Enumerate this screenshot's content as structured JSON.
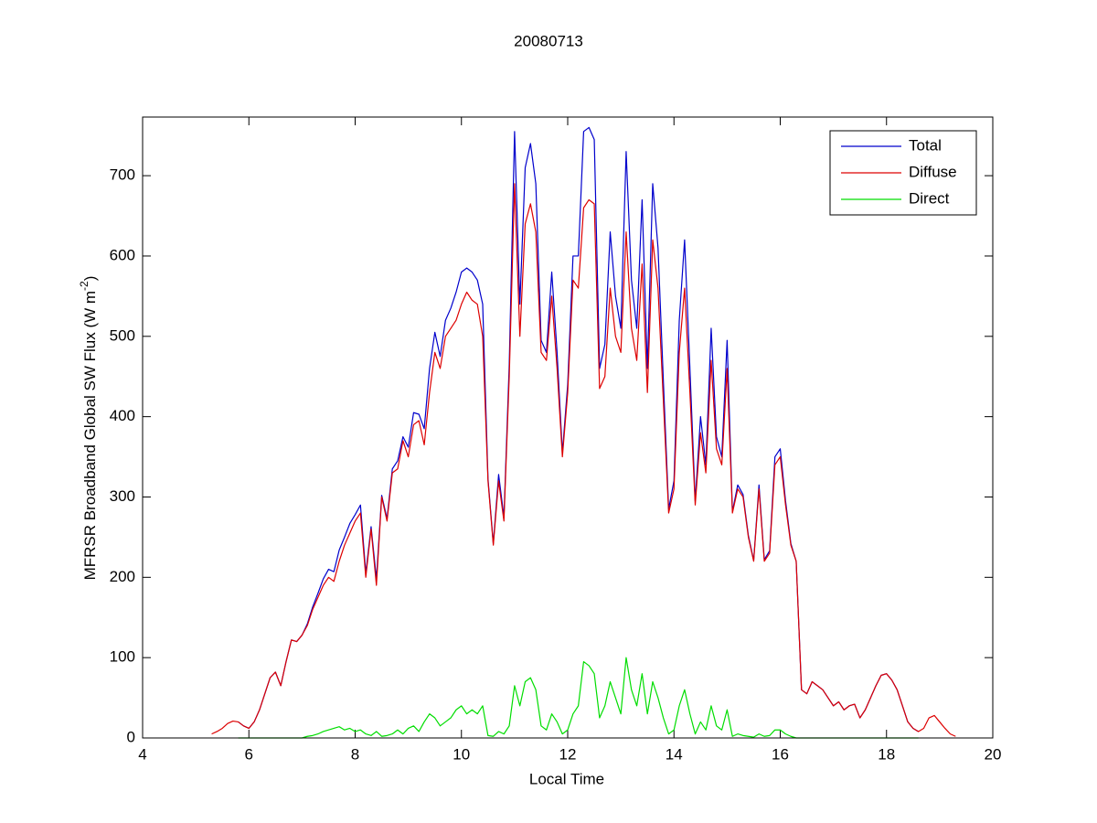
{
  "chart_data": {
    "type": "line",
    "title": "20080713",
    "xlabel": "Local Time",
    "ylabel": {
      "text": "MFRSR Broadband Global SW Flux (W m",
      "superscript": "-2",
      "close": ")"
    },
    "xlim": [
      4,
      20
    ],
    "xticks": [
      4,
      6,
      8,
      10,
      12,
      14,
      16,
      18,
      20
    ],
    "ylim": [
      0,
      773
    ],
    "yticks": [
      0,
      100,
      200,
      300,
      400,
      500,
      600,
      700
    ],
    "grid": false,
    "legend": "upper right",
    "x": [
      5.3,
      5.4,
      5.5,
      5.6,
      5.7,
      5.8,
      5.9,
      6.0,
      6.1,
      6.2,
      6.3,
      6.4,
      6.5,
      6.6,
      6.7,
      6.8,
      6.9,
      7.0,
      7.1,
      7.2,
      7.3,
      7.4,
      7.5,
      7.6,
      7.7,
      7.8,
      7.9,
      8.0,
      8.1,
      8.2,
      8.3,
      8.4,
      8.5,
      8.6,
      8.7,
      8.8,
      8.9,
      9.0,
      9.1,
      9.2,
      9.3,
      9.4,
      9.5,
      9.6,
      9.7,
      9.8,
      9.9,
      10.0,
      10.1,
      10.2,
      10.3,
      10.4,
      10.5,
      10.6,
      10.7,
      10.8,
      10.9,
      11.0,
      11.1,
      11.2,
      11.3,
      11.4,
      11.5,
      11.6,
      11.7,
      11.8,
      11.9,
      12.0,
      12.1,
      12.2,
      12.3,
      12.4,
      12.5,
      12.6,
      12.7,
      12.8,
      12.9,
      13.0,
      13.1,
      13.2,
      13.3,
      13.4,
      13.5,
      13.6,
      13.7,
      13.8,
      13.9,
      14.0,
      14.1,
      14.2,
      14.3,
      14.4,
      14.5,
      14.6,
      14.7,
      14.8,
      14.9,
      15.0,
      15.1,
      15.2,
      15.3,
      15.4,
      15.5,
      15.6,
      15.7,
      15.8,
      15.9,
      16.0,
      16.1,
      16.2,
      16.3,
      16.4,
      16.5,
      16.6,
      16.7,
      16.8,
      16.9,
      17.0,
      17.1,
      17.2,
      17.3,
      17.4,
      17.5,
      17.6,
      17.7,
      17.8,
      17.9,
      18.0,
      18.1,
      18.2,
      18.3,
      18.4,
      18.5,
      18.6,
      18.7,
      18.8,
      18.9,
      19.0,
      19.1,
      19.2,
      19.3
    ],
    "series": [
      {
        "name": "Total",
        "color": "#0000cc",
        "values": [
          null,
          null,
          null,
          null,
          null,
          20,
          15,
          12,
          20,
          35,
          55,
          75,
          82,
          65,
          95,
          122,
          120,
          128,
          142,
          163,
          180,
          198,
          210,
          207,
          234,
          250,
          267,
          278,
          290,
          205,
          263,
          198,
          302,
          273,
          335,
          345,
          375,
          362,
          405,
          403,
          385,
          460,
          505,
          475,
          520,
          535,
          555,
          580,
          585,
          580,
          570,
          540,
          323,
          242,
          328,
          275,
          465,
          755,
          540,
          710,
          740,
          690,
          495,
          480,
          580,
          480,
          355,
          440,
          600,
          600,
          755,
          760,
          745,
          460,
          490,
          630,
          550,
          510,
          730,
          570,
          510,
          670,
          460,
          690,
          610,
          445,
          285,
          320,
          520,
          620,
          460,
          295,
          400,
          340,
          510,
          375,
          350,
          495,
          282,
          315,
          303,
          252,
          221,
          315,
          222,
          233,
          350,
          360,
          295,
          242,
          220,
          60,
          55,
          70,
          65,
          60,
          50,
          40,
          45,
          35,
          40,
          42,
          25,
          35,
          50,
          65,
          78,
          80,
          72,
          60,
          40,
          20,
          12,
          8,
          null,
          null,
          null,
          null,
          null,
          null,
          null
        ]
      },
      {
        "name": "Diffuse",
        "color": "#dd0000",
        "values": [
          5,
          8,
          12,
          18,
          21,
          20,
          15,
          12,
          20,
          35,
          55,
          75,
          82,
          65,
          95,
          122,
          120,
          128,
          140,
          160,
          175,
          190,
          200,
          195,
          220,
          240,
          255,
          270,
          280,
          200,
          260,
          190,
          300,
          270,
          330,
          335,
          370,
          350,
          390,
          395,
          365,
          430,
          480,
          460,
          500,
          510,
          520,
          540,
          555,
          545,
          540,
          500,
          320,
          240,
          320,
          270,
          450,
          690,
          500,
          640,
          665,
          630,
          480,
          470,
          550,
          460,
          350,
          430,
          570,
          560,
          660,
          670,
          665,
          435,
          450,
          560,
          500,
          480,
          630,
          510,
          470,
          590,
          430,
          620,
          560,
          420,
          280,
          310,
          480,
          560,
          430,
          290,
          380,
          330,
          470,
          360,
          340,
          460,
          280,
          310,
          300,
          250,
          220,
          310,
          220,
          230,
          340,
          350,
          290,
          240,
          220,
          60,
          55,
          70,
          65,
          60,
          50,
          40,
          45,
          35,
          40,
          42,
          25,
          35,
          50,
          65,
          78,
          80,
          72,
          60,
          40,
          20,
          12,
          8,
          12,
          25,
          28,
          20,
          12,
          5,
          2
        ]
      },
      {
        "name": "Direct",
        "color": "#00dd00",
        "values": [
          null,
          null,
          null,
          null,
          null,
          0,
          0,
          0,
          0,
          0,
          0,
          0,
          0,
          0,
          0,
          0,
          0,
          0,
          2,
          3,
          5,
          8,
          10,
          12,
          14,
          10,
          12,
          8,
          10,
          5,
          3,
          8,
          2,
          3,
          5,
          10,
          5,
          12,
          15,
          8,
          20,
          30,
          25,
          15,
          20,
          25,
          35,
          40,
          30,
          35,
          30,
          40,
          3,
          2,
          8,
          5,
          15,
          65,
          40,
          70,
          75,
          60,
          15,
          10,
          30,
          20,
          5,
          10,
          30,
          40,
          95,
          90,
          80,
          25,
          40,
          70,
          50,
          30,
          100,
          60,
          40,
          80,
          30,
          70,
          50,
          25,
          5,
          10,
          40,
          60,
          30,
          5,
          20,
          10,
          40,
          15,
          10,
          35,
          2,
          5,
          3,
          2,
          1,
          5,
          2,
          3,
          10,
          10,
          5,
          2,
          0,
          0,
          0,
          0,
          0,
          0,
          0,
          0,
          0,
          0,
          0,
          0,
          0,
          0,
          0,
          0,
          0,
          0,
          0,
          0,
          0,
          0,
          0,
          0,
          null,
          null,
          null,
          null,
          null,
          null,
          null
        ]
      }
    ]
  }
}
